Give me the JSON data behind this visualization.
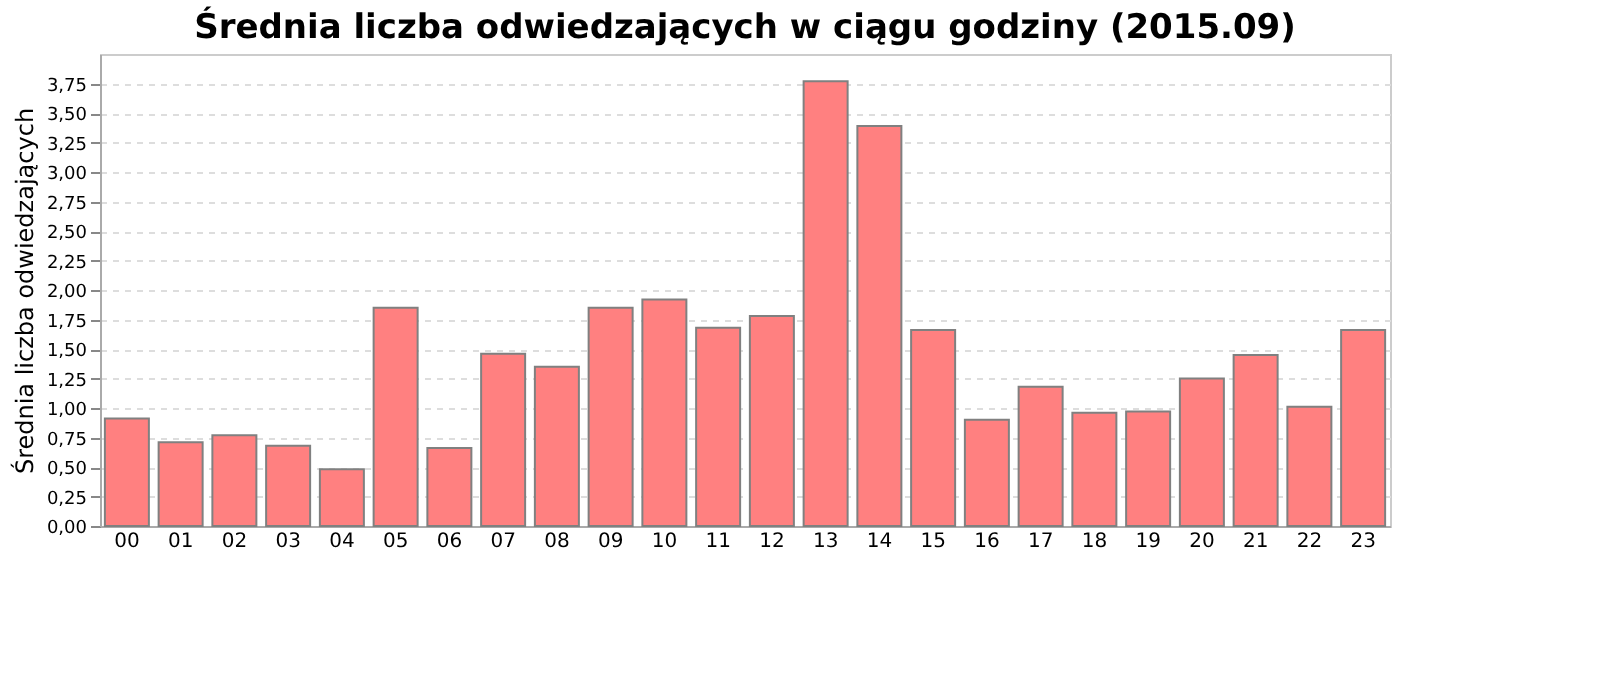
{
  "chart_data": {
    "type": "bar",
    "title": "Średnia liczba odwiedzających w ciągu godziny (2015.09)",
    "ylabel": "Średnia liczba odwiedzających",
    "categories": [
      "00",
      "01",
      "02",
      "03",
      "04",
      "05",
      "06",
      "07",
      "08",
      "09",
      "10",
      "11",
      "12",
      "13",
      "14",
      "15",
      "16",
      "17",
      "18",
      "19",
      "20",
      "21",
      "22",
      "23"
    ],
    "values": [
      0.91,
      0.71,
      0.77,
      0.68,
      0.48,
      1.85,
      0.66,
      1.46,
      1.35,
      1.85,
      1.92,
      1.68,
      1.78,
      3.77,
      3.39,
      1.66,
      0.9,
      1.18,
      0.96,
      0.97,
      1.25,
      1.45,
      1.01,
      1.66
    ],
    "color": "#ff8080",
    "ylim": [
      0,
      4
    ],
    "yticks": [
      {
        "value": 0,
        "label": "0,00"
      },
      {
        "value": 0.25,
        "label": "0,25"
      },
      {
        "value": 0.5,
        "label": "0,50"
      },
      {
        "value": 0.75,
        "label": "0,75"
      },
      {
        "value": 1,
        "label": "1,00"
      },
      {
        "value": 1.25,
        "label": "1,25"
      },
      {
        "value": 1.5,
        "label": "1,50"
      },
      {
        "value": 1.75,
        "label": "1,75"
      },
      {
        "value": 2,
        "label": "2,00"
      },
      {
        "value": 2.25,
        "label": "2,25"
      },
      {
        "value": 2.5,
        "label": "2,50"
      },
      {
        "value": 2.75,
        "label": "2,75"
      },
      {
        "value": 3,
        "label": "3,00"
      },
      {
        "value": 3.25,
        "label": "3,25"
      },
      {
        "value": 3.5,
        "label": "3,50"
      },
      {
        "value": 3.75,
        "label": "3,75"
      }
    ],
    "grid": "y",
    "legend": false
  }
}
